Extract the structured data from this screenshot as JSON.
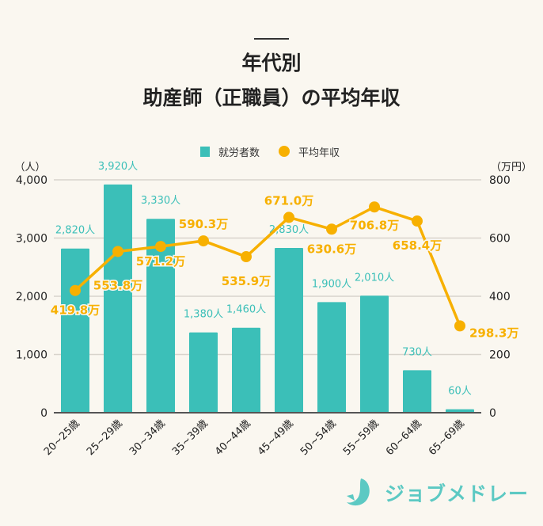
{
  "title_line1": "年代別",
  "title_line2": "助産師（正職員）の平均年収",
  "logo_text": "ジョブメドレー",
  "colors": {
    "bar": "#3bbfb8",
    "line": "#f7b000",
    "background": "#faf7f0",
    "bar_label": "#3bbfb8",
    "line_label": "#f7b000"
  },
  "chart_data": {
    "type": "bar+line",
    "categories": [
      "20~25歳",
      "25~29歳",
      "30~34歳",
      "35~39歳",
      "40~44歳",
      "45~49歳",
      "50~54歳",
      "55~59歳",
      "60~64歳",
      "65~69歳"
    ],
    "series": [
      {
        "name": "就労者数",
        "type": "bar",
        "axis": "left",
        "values": [
          2820,
          3920,
          3330,
          1380,
          1460,
          2830,
          1900,
          2010,
          730,
          60
        ],
        "labels": [
          "2,820人",
          "3,920人",
          "3,330人",
          "1,380人",
          "1,460人",
          "2,830人",
          "1,900人",
          "2,010人",
          "730人",
          "60人"
        ]
      },
      {
        "name": "平均年収",
        "type": "line",
        "axis": "right",
        "values": [
          419.8,
          553.8,
          571.2,
          590.3,
          535.9,
          671.0,
          630.6,
          706.8,
          658.4,
          298.3
        ],
        "labels": [
          "419.8万",
          "553.8万",
          "571.2万",
          "590.3万",
          "535.9万",
          "671.0万",
          "630.6万",
          "706.8万",
          "658.4万",
          "298.3万"
        ]
      }
    ],
    "left_axis": {
      "unit": "（人）",
      "ylim": [
        0,
        4000
      ],
      "ticks": [
        "0",
        "1,000",
        "2,000",
        "3,000",
        "4,000"
      ]
    },
    "right_axis": {
      "unit": "（万円）",
      "ylim": [
        0,
        800
      ],
      "ticks": [
        "0",
        "200",
        "400",
        "600",
        "800"
      ]
    },
    "legend": {
      "position": "top-center",
      "items": [
        "就労者数",
        "平均年収"
      ]
    },
    "grid": true
  }
}
